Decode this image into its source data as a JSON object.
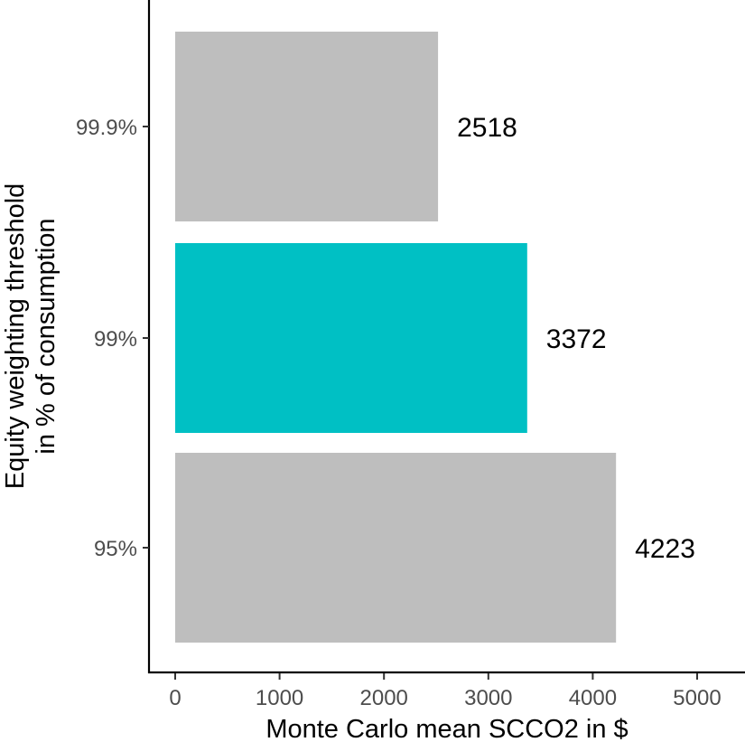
{
  "chart_data": {
    "type": "bar",
    "orientation": "horizontal",
    "categories": [
      "99.9%",
      "99%",
      "95%"
    ],
    "values": [
      2518,
      3372,
      4223
    ],
    "data_labels": [
      "2518",
      "3372",
      "4223"
    ],
    "highlighted_category": "99%",
    "colors": {
      "default": "#bebebe",
      "highlight": "#00c0c4",
      "axis": "#000000",
      "tick_text": "#4d4d4d"
    },
    "xlabel": "Monte Carlo mean SCCO2 in $",
    "ylabel_lines": [
      "Equity weighting threshold",
      "in % of consumption"
    ],
    "x_ticks": [
      0,
      1000,
      2000,
      3000,
      4000,
      5000
    ],
    "x_tick_labels": [
      "0",
      "1000",
      "2000",
      "3000",
      "4000",
      "5000"
    ],
    "xlim": [
      0,
      5000
    ],
    "grid": false,
    "legend": "none"
  }
}
